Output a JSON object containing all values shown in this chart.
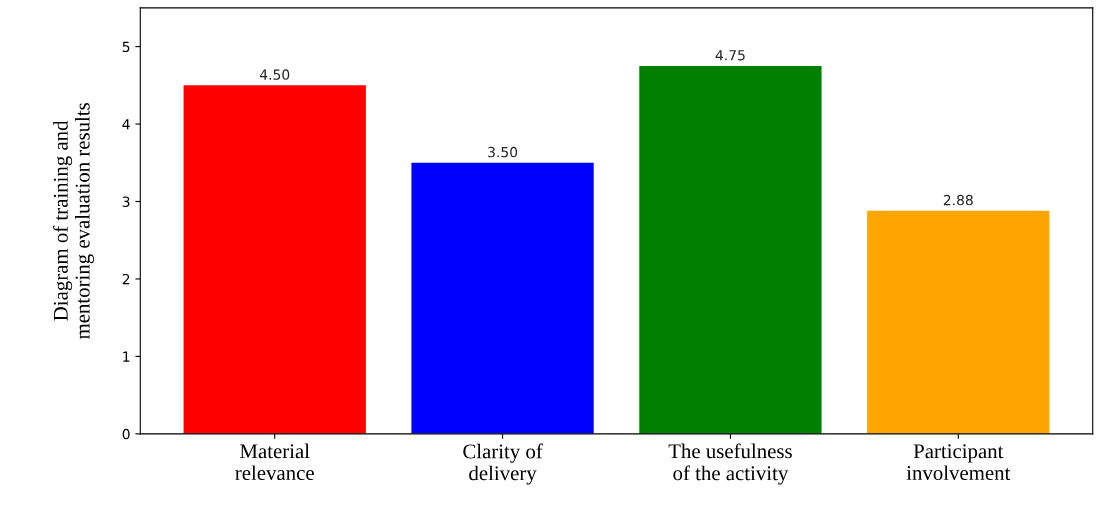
{
  "chart_data": {
    "type": "bar",
    "ylabel": "Diagram of training and\nmentoring evaluation results",
    "categories": [
      "Material\nrelevance",
      "Clarity of\ndelivery",
      "The usefulness\nof the activity",
      "Participant\ninvolvement"
    ],
    "values": [
      4.5,
      3.5,
      4.75,
      2.88
    ],
    "colors": [
      "#ff0000",
      "#0000ff",
      "#008000",
      "#ffa500"
    ],
    "value_labels": [
      "4.50",
      "3.50",
      "4.75",
      "2.88"
    ],
    "ylim": [
      0,
      5.5
    ],
    "yticks": [
      0,
      1,
      2,
      3,
      4,
      5
    ],
    "grid": false,
    "legend": false
  }
}
